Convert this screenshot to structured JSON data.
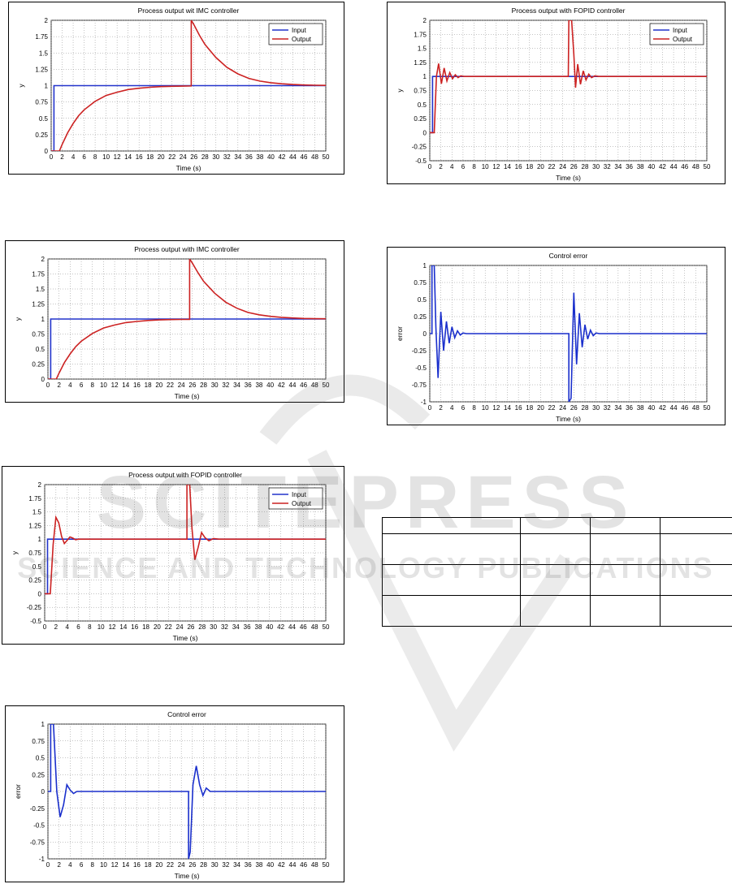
{
  "figures": [
    {
      "id": "fig-imc-1",
      "title": "Process output wit IMC controller",
      "chart_data": {
        "type": "line",
        "title": "Process output wit IMC controller",
        "xlabel": "Time (s)",
        "ylabel": "y",
        "xlim": [
          0,
          50
        ],
        "ylim": [
          0,
          2
        ],
        "xticks": [
          "0",
          "2",
          "4",
          "6",
          "8",
          "10",
          "12",
          "14",
          "16",
          "18",
          "20",
          "22",
          "24",
          "26",
          "28",
          "30",
          "32",
          "34",
          "36",
          "38",
          "40",
          "42",
          "44",
          "46",
          "48",
          "50"
        ],
        "yticks": [
          "0",
          "0.25",
          "0.5",
          "0.75",
          "1",
          "1.25",
          "1.5",
          "1.75",
          "2"
        ],
        "grid": true,
        "legend": "top-right",
        "series": [
          {
            "name": "Input",
            "color": "#2233cc",
            "x": [
              0,
              0.5,
              0.5,
              50
            ],
            "y": [
              0,
              0,
              1,
              1
            ]
          },
          {
            "name": "Output",
            "color": "#cc2222",
            "x": [
              0,
              1.5,
              2,
              3,
              4,
              5,
              6,
              8,
              10,
              12,
              14,
              16,
              18,
              20,
              22,
              24,
              25.5,
              25.5,
              26,
              27,
              28,
              30,
              32,
              34,
              36,
              38,
              40,
              42,
              44,
              46,
              48,
              50
            ],
            "y": [
              0,
              0,
              0.1,
              0.28,
              0.42,
              0.54,
              0.63,
              0.76,
              0.85,
              0.9,
              0.94,
              0.96,
              0.975,
              0.985,
              0.99,
              0.993,
              0.995,
              2.0,
              1.93,
              1.77,
              1.63,
              1.43,
              1.28,
              1.18,
              1.11,
              1.07,
              1.045,
              1.028,
              1.017,
              1.01,
              1.006,
              1.004
            ]
          }
        ]
      }
    },
    {
      "id": "fig-imc-2",
      "title": "Process output with IMC controller",
      "chart_data": {
        "type": "line",
        "title": "Process output with IMC controller",
        "xlabel": "Time (s)",
        "ylabel": "y",
        "xlim": [
          0,
          50
        ],
        "ylim": [
          0,
          2
        ],
        "xticks": [
          "0",
          "2",
          "4",
          "6",
          "8",
          "10",
          "12",
          "14",
          "16",
          "18",
          "20",
          "22",
          "24",
          "26",
          "28",
          "30",
          "32",
          "34",
          "36",
          "38",
          "40",
          "42",
          "44",
          "46",
          "48",
          "50"
        ],
        "yticks": [
          "0",
          "0.25",
          "0.5",
          "0.75",
          "1",
          "1.25",
          "1.5",
          "1.75",
          "2"
        ],
        "grid": true,
        "series": [
          {
            "name": "",
            "color": "#2233cc",
            "x": [
              0,
              0.5,
              0.5,
              50
            ],
            "y": [
              0,
              0,
              1,
              1
            ]
          },
          {
            "name": "",
            "color": "#cc2222",
            "x": [
              0,
              1.5,
              2,
              3,
              4,
              5,
              6,
              8,
              10,
              12,
              14,
              16,
              18,
              20,
              22,
              24,
              25.5,
              25.5,
              26,
              27,
              28,
              30,
              32,
              34,
              36,
              38,
              40,
              42,
              44,
              46,
              48,
              50
            ],
            "y": [
              0,
              0,
              0.1,
              0.28,
              0.42,
              0.54,
              0.63,
              0.76,
              0.85,
              0.9,
              0.94,
              0.96,
              0.975,
              0.985,
              0.99,
              0.993,
              0.995,
              2.0,
              1.93,
              1.77,
              1.63,
              1.43,
              1.28,
              1.18,
              1.11,
              1.07,
              1.045,
              1.028,
              1.017,
              1.01,
              1.006,
              1.004
            ]
          }
        ]
      }
    },
    {
      "id": "fig-fopid-1",
      "title": "Process output with FOPID controller",
      "chart_data": {
        "type": "line",
        "title": "Process output with FOPID controller",
        "xlabel": "Time (s)",
        "ylabel": "y",
        "xlim": [
          0,
          50
        ],
        "ylim": [
          -0.5,
          2
        ],
        "xticks": [
          "0",
          "2",
          "4",
          "6",
          "8",
          "10",
          "12",
          "14",
          "16",
          "18",
          "20",
          "22",
          "24",
          "26",
          "28",
          "30",
          "32",
          "34",
          "36",
          "38",
          "40",
          "42",
          "44",
          "46",
          "48",
          "50"
        ],
        "yticks": [
          "-0.5",
          "-0.25",
          "0",
          "0.25",
          "0.5",
          "0.75",
          "1",
          "1.25",
          "1.5",
          "1.75",
          "2"
        ],
        "grid": true,
        "legend": "top-right",
        "series": [
          {
            "name": "Input",
            "color": "#2233cc",
            "x": [
              0,
              0.5,
              0.5,
              50
            ],
            "y": [
              0,
              0,
              1,
              1
            ]
          },
          {
            "name": "Output",
            "color": "#cc2222",
            "x": [
              0,
              1,
              1.5,
              2,
              2.5,
              3,
              3.5,
              4,
              4.5,
              5,
              5.5,
              6,
              25.3,
              25.3,
              25.8,
              26.2,
              26.7,
              27.3,
              27.9,
              28.5,
              29.2,
              30,
              31,
              50
            ],
            "y": [
              0,
              0,
              0.9,
              1.4,
              1.3,
              1.05,
              0.92,
              0.98,
              1.04,
              1.02,
              0.99,
              1.0,
              1.0,
              2.0,
              2.0,
              1.2,
              0.62,
              0.85,
              1.12,
              1.03,
              0.97,
              1.01,
              1.0,
              1.0
            ]
          }
        ]
      }
    },
    {
      "id": "fig-error-1",
      "title": "Control error",
      "chart_data": {
        "type": "line",
        "title": "Control error",
        "xlabel": "Time (s)",
        "ylabel": "error",
        "xlim": [
          0,
          50
        ],
        "ylim": [
          -1,
          1
        ],
        "xticks": [
          "0",
          "2",
          "4",
          "6",
          "8",
          "10",
          "12",
          "14",
          "16",
          "18",
          "20",
          "22",
          "24",
          "26",
          "28",
          "30",
          "32",
          "34",
          "36",
          "38",
          "40",
          "42",
          "44",
          "46",
          "48",
          "50"
        ],
        "yticks": [
          "-1",
          "-0.75",
          "-0.5",
          "-0.25",
          "0",
          "0.25",
          "0.5",
          "0.75",
          "1"
        ],
        "grid": true,
        "series": [
          {
            "name": "",
            "color": "#1a2fcc",
            "x": [
              0,
              0.5,
              0.5,
              1,
              1.6,
              2.2,
              2.8,
              3.4,
              4,
              4.6,
              5.2,
              6,
              25,
              25.3,
              25.3,
              25.6,
              26.1,
              26.7,
              27.3,
              27.9,
              28.5,
              29.2,
              30,
              50
            ],
            "y": [
              0,
              0,
              1,
              1,
              0.0,
              -0.38,
              -0.2,
              0.1,
              0.02,
              -0.03,
              0.0,
              0.0,
              0.0,
              0.0,
              -1,
              -0.9,
              0.1,
              0.38,
              0.1,
              -0.06,
              0.05,
              0.0,
              0.0,
              0.0
            ]
          }
        ]
      }
    },
    {
      "id": "fig-fopid-2",
      "title": "Process output with FOPID controller",
      "chart_data": {
        "type": "line",
        "title": "Process output with FOPID controller",
        "xlabel": "Time (s)",
        "ylabel": "y",
        "xlim": [
          0,
          50
        ],
        "ylim": [
          -0.5,
          2
        ],
        "xticks": [
          "0",
          "2",
          "4",
          "6",
          "8",
          "10",
          "12",
          "14",
          "16",
          "18",
          "20",
          "22",
          "24",
          "26",
          "28",
          "30",
          "32",
          "34",
          "36",
          "38",
          "40",
          "42",
          "44",
          "46",
          "48",
          "50"
        ],
        "yticks": [
          "-0.5",
          "-0.25",
          "0",
          "0.25",
          "0.5",
          "0.75",
          "1",
          "1.25",
          "1.5",
          "1.75",
          "2"
        ],
        "grid": true,
        "legend": "top-right",
        "series": [
          {
            "name": "Input",
            "color": "#2233cc",
            "x": [
              0,
              0.5,
              0.5,
              50
            ],
            "y": [
              0,
              0,
              1,
              1
            ]
          },
          {
            "name": "Output",
            "color": "#cc2222",
            "x": [
              0,
              0.8,
              1.2,
              1.6,
              2.1,
              2.6,
              3.1,
              3.6,
              4.1,
              4.6,
              5.1,
              5.6,
              6.2,
              7,
              25,
              25.1,
              25.6,
              26,
              26.3,
              26.7,
              27.2,
              27.7,
              28.2,
              28.7,
              29.2,
              29.8,
              30.5,
              31.5,
              50
            ],
            "y": [
              0,
              0,
              1.0,
              1.23,
              0.87,
              1.15,
              0.92,
              1.07,
              0.96,
              1.03,
              0.98,
              1.01,
              1.0,
              1.0,
              1.0,
              2.0,
              2.0,
              1.4,
              0.8,
              1.22,
              0.86,
              1.1,
              0.94,
              1.04,
              0.98,
              1.01,
              1.0,
              1.0,
              1.0
            ]
          }
        ]
      }
    },
    {
      "id": "fig-error-2",
      "title": "Control error",
      "chart_data": {
        "type": "line",
        "title": "Control error",
        "xlabel": "Time (s)",
        "ylabel": "error",
        "xlim": [
          0,
          50
        ],
        "ylim": [
          -1,
          1
        ],
        "xticks": [
          "0",
          "2",
          "4",
          "6",
          "8",
          "10",
          "12",
          "14",
          "16",
          "18",
          "20",
          "22",
          "24",
          "26",
          "28",
          "30",
          "32",
          "34",
          "36",
          "38",
          "40",
          "42",
          "44",
          "46",
          "48",
          "50"
        ],
        "yticks": [
          "-1",
          "-0.75",
          "-0.5",
          "-0.25",
          "0",
          "0.25",
          "0.5",
          "0.75",
          "1"
        ],
        "grid": true,
        "series": [
          {
            "name": "",
            "color": "#1a2fcc",
            "x": [
              0,
              0.4,
              0.4,
              0.8,
              1.1,
              1.5,
              2.0,
              2.5,
              3.0,
              3.5,
              4.0,
              4.5,
              5.0,
              5.5,
              6.0,
              6.6,
              7.5,
              25,
              25.1,
              25.1,
              25.5,
              26,
              26.5,
              27,
              27.5,
              28,
              28.5,
              29,
              29.5,
              30,
              30.6,
              31.5,
              50
            ],
            "y": [
              0,
              0,
              1,
              1,
              0.1,
              -0.65,
              0.32,
              -0.25,
              0.18,
              -0.14,
              0.1,
              -0.06,
              0.04,
              -0.02,
              0.01,
              0.0,
              0.0,
              0.0,
              0.0,
              -1,
              -0.95,
              0.6,
              -0.45,
              0.3,
              -0.2,
              0.13,
              -0.08,
              0.05,
              -0.03,
              0.01,
              0.0,
              0.0,
              0.0
            ]
          }
        ]
      }
    }
  ],
  "watermark": {
    "line1": "SCITEPRESS",
    "line2": "SCIENCE AND TECHNOLOGY PUBLICATIONS"
  },
  "table": {
    "rows": 4,
    "cols": 4
  }
}
